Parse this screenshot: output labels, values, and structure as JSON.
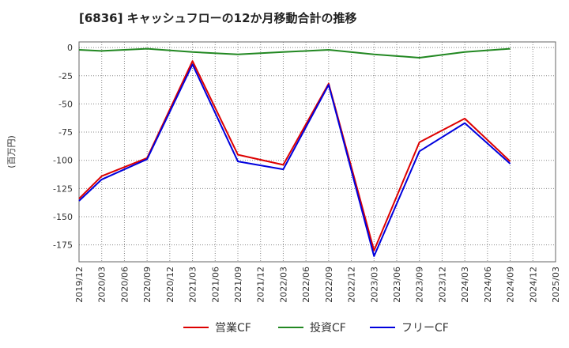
{
  "chart_data": {
    "type": "line",
    "title": "[6836]  キャッシュフローの12か月移動合計の推移",
    "ylabel": "(百万円)",
    "xlabel": "",
    "ylim": [
      -190,
      5
    ],
    "yticks": [
      0,
      -25,
      -50,
      -75,
      -100,
      -125,
      -150,
      -175
    ],
    "x": [
      "2019/12",
      "2020/03",
      "2020/06",
      "2020/09",
      "2020/12",
      "2021/03",
      "2021/06",
      "2021/09",
      "2021/12",
      "2022/03",
      "2022/06",
      "2022/09",
      "2022/12",
      "2023/03",
      "2023/06",
      "2023/09",
      "2023/12",
      "2024/03",
      "2024/06",
      "2024/09",
      "2024/12",
      "2025/03"
    ],
    "grid": true,
    "legend_position": "bottom",
    "series": [
      {
        "name": "営業CF",
        "color": "#dd0000",
        "values": [
          -134,
          -114,
          null,
          -98,
          null,
          -12,
          null,
          -95,
          null,
          -104,
          null,
          -32,
          null,
          -180,
          null,
          -84,
          null,
          -63,
          null,
          -101,
          null,
          null
        ]
      },
      {
        "name": "投資CF",
        "color": "#228822",
        "values": [
          -2,
          -3,
          null,
          -1,
          null,
          -4,
          null,
          -6,
          null,
          -4,
          null,
          -2,
          null,
          -6,
          null,
          -9,
          null,
          -4,
          null,
          -1,
          null,
          null
        ]
      },
      {
        "name": "フリーCF",
        "color": "#0000dd",
        "values": [
          -136,
          -117,
          null,
          -99,
          null,
          -15,
          null,
          -101,
          null,
          -108,
          null,
          -33,
          null,
          -185,
          null,
          -92,
          null,
          -67,
          null,
          -103,
          null,
          null
        ]
      }
    ]
  }
}
